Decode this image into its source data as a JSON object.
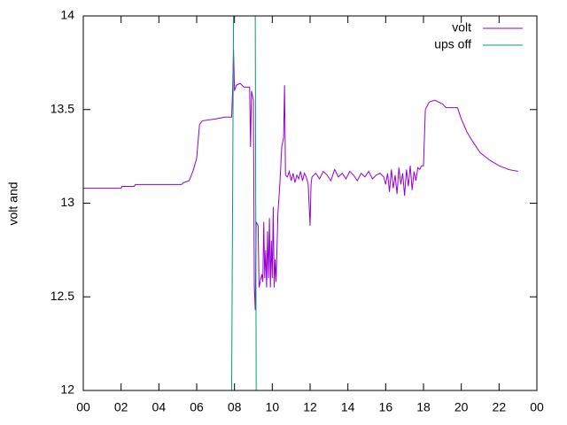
{
  "chart_data": {
    "type": "line",
    "ylabel": "volt and",
    "xlim": [
      0,
      24
    ],
    "xticks": [
      {
        "value": 0,
        "label": "00"
      },
      {
        "value": 2,
        "label": "02"
      },
      {
        "value": 4,
        "label": "04"
      },
      {
        "value": 6,
        "label": "06"
      },
      {
        "value": 8,
        "label": "08"
      },
      {
        "value": 10,
        "label": "10"
      },
      12,
      14,
      16,
      18,
      20,
      22,
      {
        "value": 24,
        "label": "00"
      }
    ],
    "ylim": [
      12,
      14
    ],
    "yticks": [
      12,
      12.5,
      13,
      13.5,
      14
    ],
    "legend": "top-right",
    "series": [
      {
        "name": "volt",
        "color": "#9400d3",
        "x": [
          0,
          2.0,
          2.05,
          2.7,
          2.75,
          5.2,
          5.3,
          5.6,
          5.8,
          6.0,
          6.15,
          6.3,
          7.0,
          7.5,
          7.85,
          7.9,
          7.95,
          8.0,
          8.1,
          8.3,
          8.5,
          8.8,
          8.85,
          8.9,
          9.0,
          9.05,
          9.1,
          9.15,
          9.25,
          9.3,
          9.4,
          9.45,
          9.5,
          9.55,
          9.6,
          9.65,
          9.7,
          9.75,
          9.8,
          9.85,
          9.9,
          9.95,
          10.0,
          10.05,
          10.1,
          10.15,
          10.2,
          10.3,
          10.4,
          10.5,
          10.6,
          10.65,
          10.7,
          10.8,
          10.9,
          11.0,
          11.1,
          11.2,
          11.3,
          11.4,
          11.5,
          11.6,
          11.7,
          11.8,
          11.9,
          12.0,
          12.05,
          12.1,
          12.3,
          12.5,
          12.7,
          12.9,
          13.1,
          13.3,
          13.5,
          13.7,
          13.9,
          14.1,
          14.3,
          14.5,
          14.7,
          14.9,
          15.1,
          15.3,
          15.5,
          15.7,
          15.9,
          16.0,
          16.1,
          16.2,
          16.3,
          16.4,
          16.5,
          16.6,
          16.7,
          16.8,
          16.9,
          17.0,
          17.1,
          17.2,
          17.3,
          17.4,
          17.5,
          17.6,
          17.7,
          17.8,
          17.9,
          18.0,
          18.1,
          18.3,
          18.6,
          19.0,
          19.2,
          19.8,
          20.0,
          20.3,
          20.6,
          21.0,
          21.5,
          22.0,
          22.5,
          23.0
        ],
        "values": [
          13.08,
          13.08,
          13.09,
          13.09,
          13.1,
          13.1,
          13.11,
          13.12,
          13.17,
          13.24,
          13.42,
          13.44,
          13.45,
          13.46,
          13.46,
          13.6,
          13.82,
          13.6,
          13.63,
          13.64,
          13.62,
          13.62,
          13.3,
          13.6,
          13.55,
          12.55,
          12.43,
          12.9,
          12.88,
          12.55,
          12.6,
          12.62,
          12.58,
          12.9,
          12.6,
          12.75,
          12.55,
          12.85,
          12.6,
          12.92,
          12.55,
          12.8,
          12.6,
          12.98,
          12.55,
          12.7,
          12.58,
          12.95,
          13.1,
          13.3,
          13.35,
          13.63,
          13.15,
          13.14,
          13.17,
          13.12,
          13.16,
          13.11,
          13.15,
          13.13,
          13.17,
          13.12,
          13.16,
          13.14,
          13.1,
          12.88,
          13.1,
          13.14,
          13.16,
          13.13,
          13.17,
          13.15,
          13.12,
          13.18,
          13.14,
          13.16,
          13.13,
          13.17,
          13.15,
          13.12,
          13.16,
          13.14,
          13.17,
          13.13,
          13.15,
          13.16,
          13.14,
          13.1,
          13.16,
          13.06,
          13.18,
          13.08,
          13.15,
          13.05,
          13.19,
          13.1,
          13.16,
          13.04,
          13.18,
          13.09,
          13.2,
          13.07,
          13.17,
          13.12,
          13.19,
          13.18,
          13.2,
          13.2,
          13.5,
          13.54,
          13.55,
          13.53,
          13.51,
          13.51,
          13.45,
          13.38,
          13.33,
          13.27,
          13.23,
          13.2,
          13.18,
          13.17
        ]
      },
      {
        "name": "ups off",
        "color": "#009e73",
        "x": [
          7.85,
          7.95,
          9.1,
          9.15
        ],
        "values": [
          12,
          14,
          14,
          12
        ]
      }
    ]
  }
}
